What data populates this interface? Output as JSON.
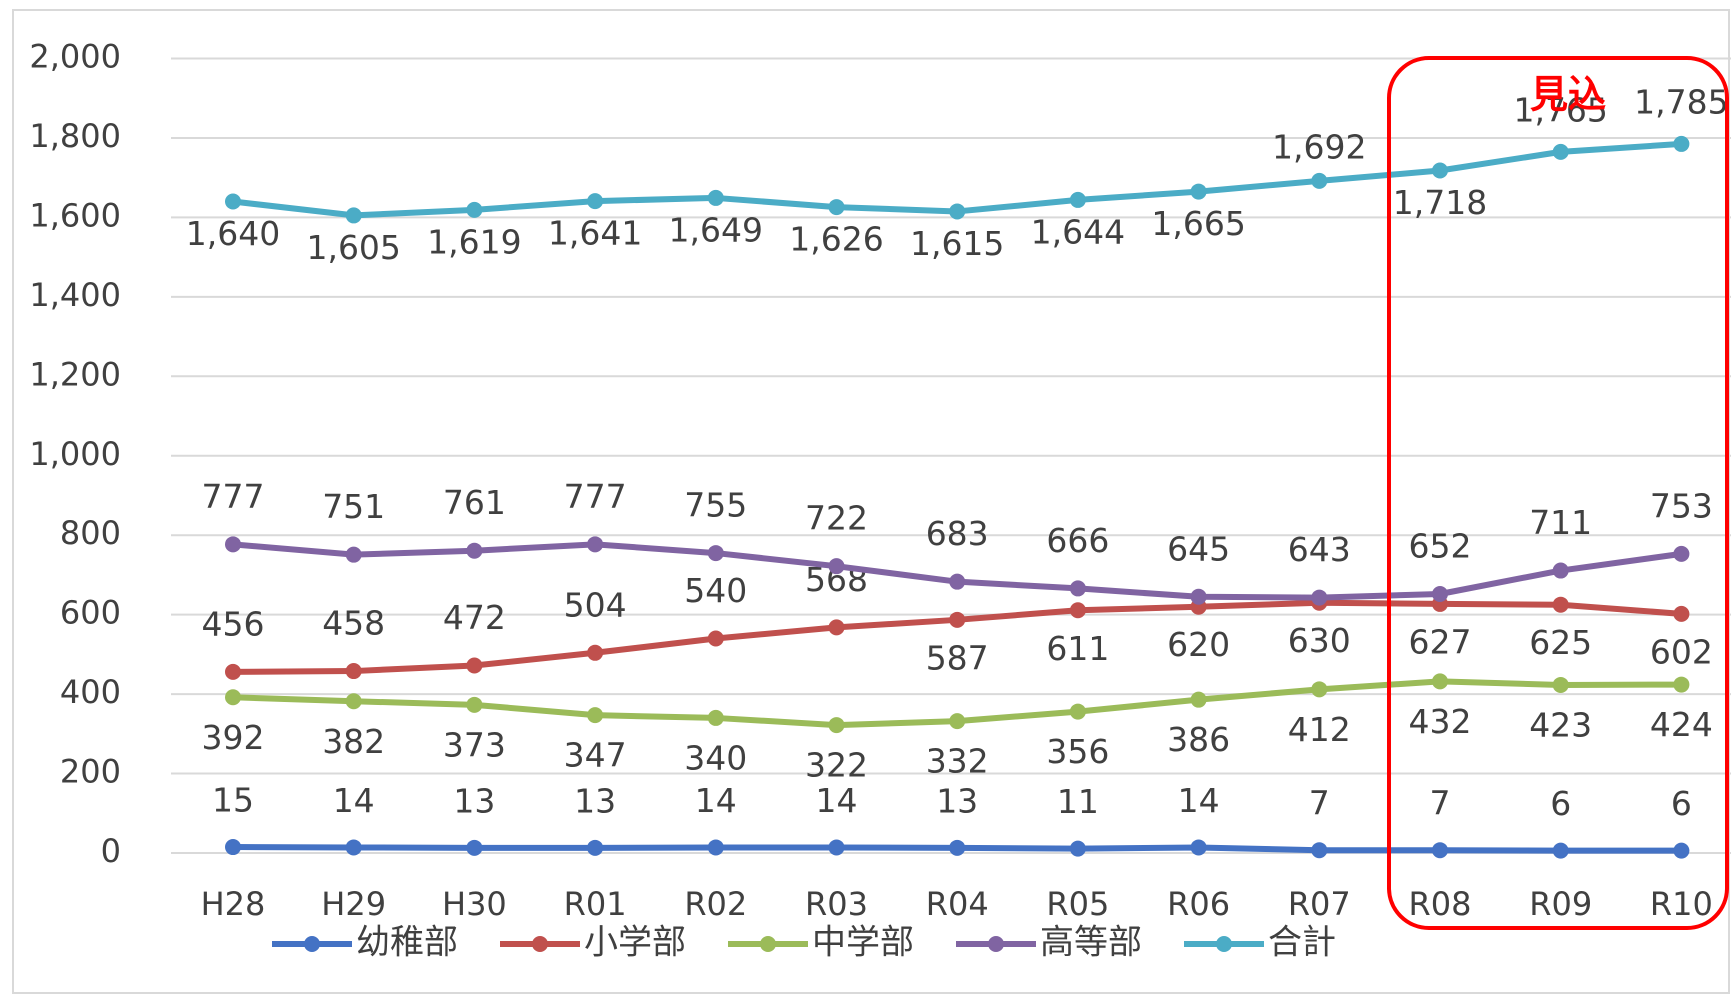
{
  "chart_data": {
    "type": "line",
    "categories": [
      "H28",
      "H29",
      "H30",
      "R01",
      "R02",
      "R03",
      "R04",
      "R05",
      "R06",
      "R07",
      "R08",
      "R09",
      "R10"
    ],
    "series": [
      {
        "name": "幼稚部",
        "color": "#4472c4",
        "values": [
          15,
          14,
          13,
          13,
          14,
          14,
          13,
          11,
          14,
          7,
          7,
          6,
          6
        ]
      },
      {
        "name": "小学部",
        "color": "#c0504d",
        "values": [
          456,
          458,
          472,
          504,
          540,
          568,
          587,
          611,
          620,
          630,
          627,
          625,
          602
        ]
      },
      {
        "name": "中学部",
        "color": "#9bbb59",
        "values": [
          392,
          382,
          373,
          347,
          340,
          322,
          332,
          356,
          386,
          412,
          432,
          423,
          424
        ]
      },
      {
        "name": "高等部",
        "color": "#8064a2",
        "values": [
          777,
          751,
          761,
          777,
          755,
          722,
          683,
          666,
          645,
          643,
          652,
          711,
          753
        ]
      },
      {
        "name": "合計",
        "color": "#4bacc6",
        "values": [
          1640,
          1605,
          1619,
          1641,
          1649,
          1626,
          1615,
          1644,
          1665,
          1692,
          1718,
          1765,
          1785
        ],
        "value_labels": [
          "1,640",
          "1,605",
          "1,619",
          "1,641",
          "1,649",
          "1,626",
          "1,615",
          "1,644",
          "1,665",
          "1,692",
          "1,718",
          "1,765",
          "1,785"
        ]
      }
    ],
    "ylim": [
      0,
      2000
    ],
    "yticks": [
      0,
      200,
      400,
      600,
      800,
      {
        "value": 1000,
        "label": "1,000"
      },
      {
        "value": 1200,
        "label": "1,200"
      },
      {
        "value": 1400,
        "label": "1,400"
      },
      {
        "value": 1600,
        "label": "1,600"
      },
      {
        "value": 1800,
        "label": "1,800"
      },
      {
        "value": 2000,
        "label": "2,000"
      }
    ],
    "grid": true,
    "legend": "bottom",
    "annotation": "見込"
  }
}
